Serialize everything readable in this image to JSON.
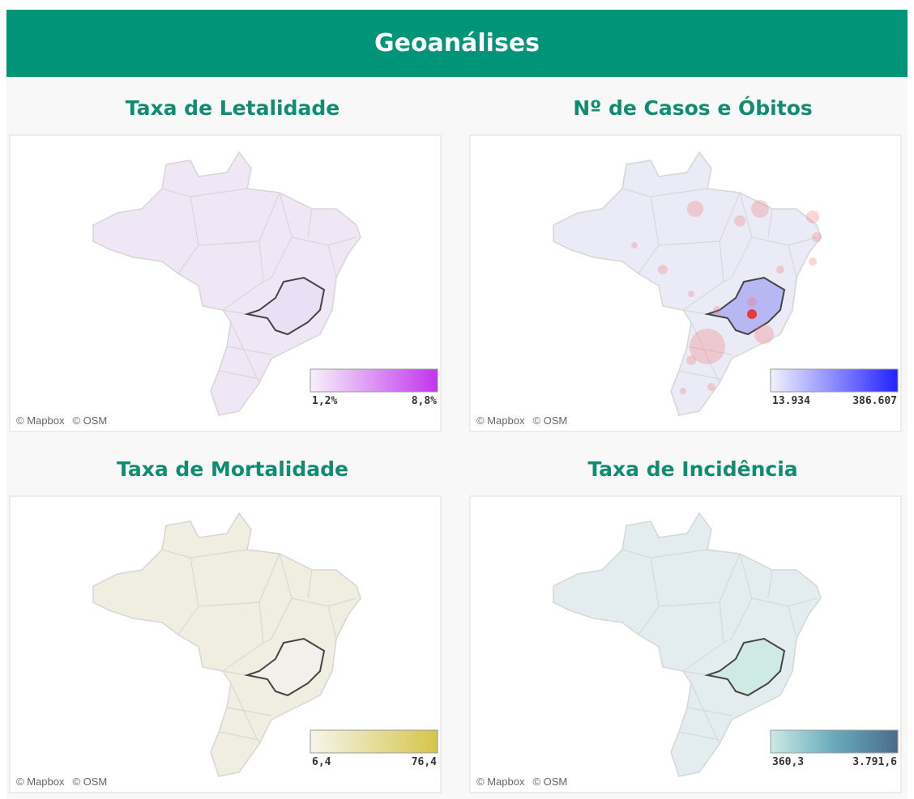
{
  "header": {
    "title": "Geoanálises"
  },
  "panels": [
    {
      "title": "Taxa de Letalidade",
      "legend": {
        "min_label": "1,2%",
        "max_label": "8,8%",
        "colors": [
          "#f7f1fa",
          "#c234ee"
        ]
      },
      "map_fill": "#efe6f6",
      "highlight_fill": "#eadff4",
      "attribution": [
        "© Mapbox",
        "© OSM"
      ]
    },
    {
      "title": "Nº de Casos e Óbitos",
      "legend": {
        "min_label": "13.934",
        "max_label": "386.607",
        "colors": [
          "#f2f2fb",
          "#2222ff"
        ]
      },
      "map_fill": "#ebebf7",
      "highlight_fill": "#b7b7f4",
      "attribution": [
        "© Mapbox",
        "© OSM"
      ]
    },
    {
      "title": "Taxa de Mortalidade",
      "legend": {
        "min_label": "6,4",
        "max_label": "76,4",
        "colors": [
          "#f6f5ec",
          "#d5c54a"
        ]
      },
      "map_fill": "#efeee0",
      "highlight_fill": "#f1f0eb",
      "attribution": [
        "© Mapbox",
        "© OSM"
      ]
    },
    {
      "title": "Taxa de Incidência",
      "legend": {
        "min_label": "360,3",
        "max_label": "3.791,6",
        "colors": [
          "#cbeae5",
          "#68aabb",
          "#4b6b8c"
        ]
      },
      "map_fill": "#e3edf0",
      "highlight_fill": "#cfeae3",
      "attribution": [
        "© Mapbox",
        "© OSM"
      ]
    }
  ]
}
